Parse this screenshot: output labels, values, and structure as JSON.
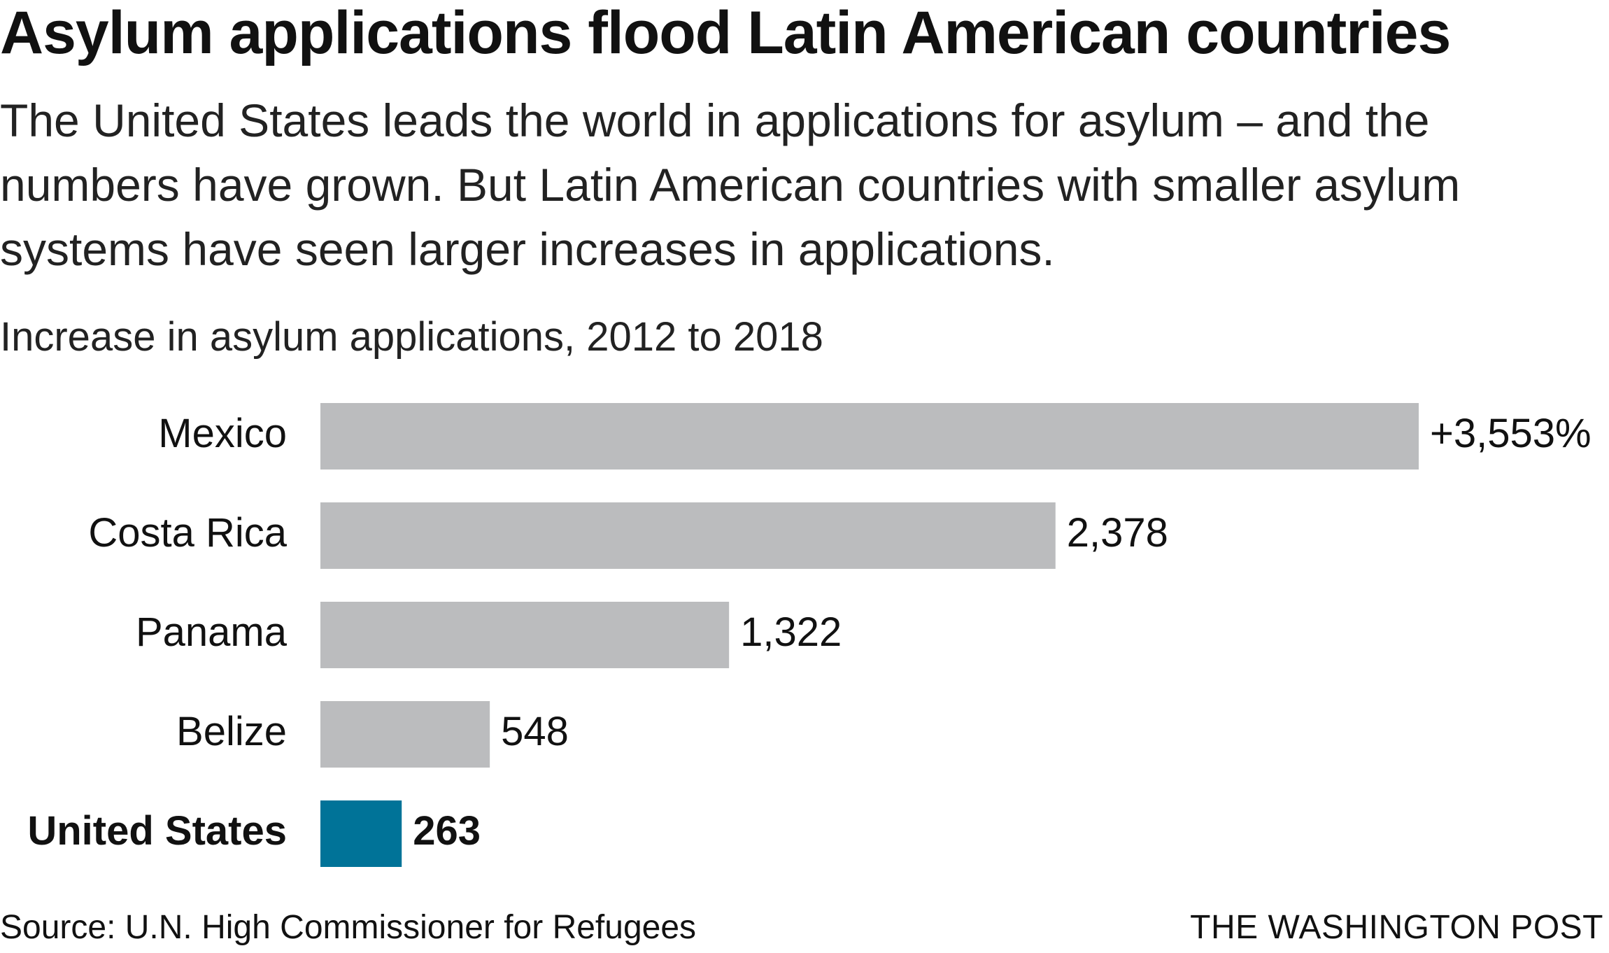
{
  "header": {
    "title": "Asylum applications flood Latin American countries",
    "subtitle": "The United States leads the world in applications for asylum – and the numbers have grown. But Latin American countries with smaller asylum systems have seen larger increases in applications."
  },
  "chart_data": {
    "type": "bar",
    "title": "Increase in asylum applications, 2012 to 2018",
    "categories": [
      "Mexico",
      "Costa Rica",
      "Panama",
      "Belize",
      "United States"
    ],
    "values": [
      3553,
      2378,
      1322,
      548,
      263
    ],
    "value_labels": [
      "+3,553%",
      "2,378",
      "1,322",
      "548",
      "263"
    ],
    "unit": "%",
    "orientation": "horizontal",
    "colors": [
      "#bbbcbe",
      "#bbbcbe",
      "#bbbcbe",
      "#bbbcbe",
      "#007398"
    ],
    "highlight": "United States",
    "xlim": [
      0,
      3553
    ],
    "grid": false,
    "legend": "none"
  },
  "footer": {
    "source": "Source: U.N. High Commissioner for Refugees",
    "credit": "THE WASHINGTON POST"
  }
}
